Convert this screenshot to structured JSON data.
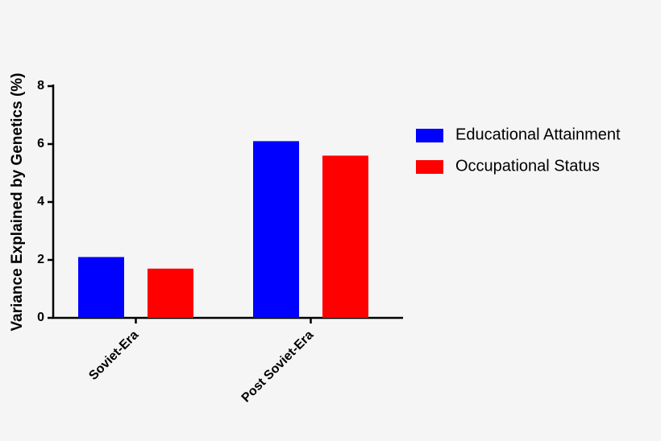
{
  "chart_data": {
    "type": "bar",
    "y_label": "Variance Explained by  Genetics  (%)",
    "categories": [
      "Soviet-Era",
      "Post Soviet-Era"
    ],
    "series": [
      {
        "name": "Educational Attainment",
        "color": "#0000ff",
        "values": [
          2.1,
          6.1
        ]
      },
      {
        "name": "Occupational Status",
        "color": "#ff0000",
        "values": [
          1.7,
          5.6
        ]
      }
    ],
    "ylim": [
      0,
      8
    ],
    "yticks": [
      0,
      2,
      4,
      6,
      8
    ],
    "grid": false
  }
}
